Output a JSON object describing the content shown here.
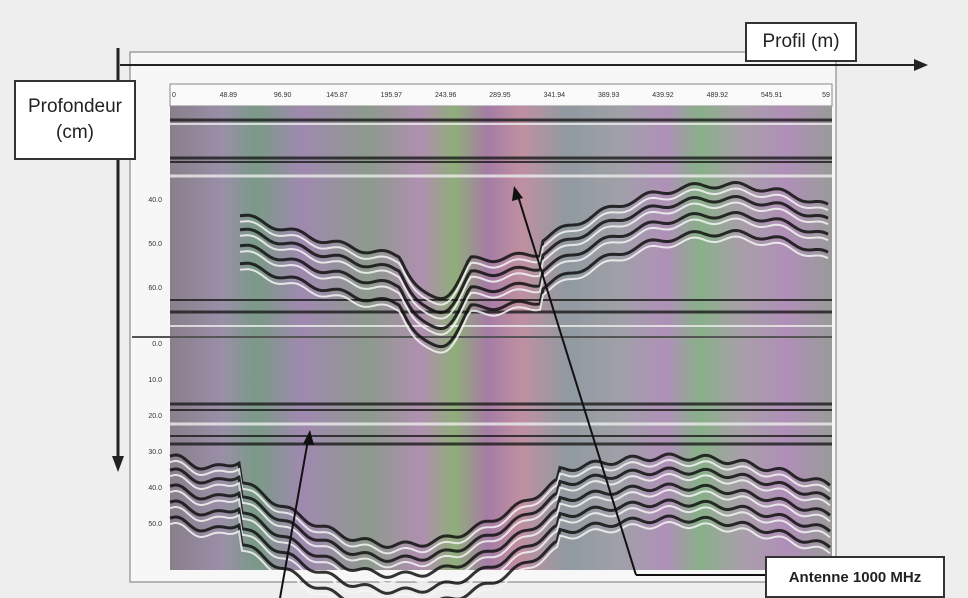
{
  "header": {
    "x_axis_label": "Profil (m)",
    "y_axis_label": [
      "Profondeur",
      "(cm)"
    ]
  },
  "callout": "Antenne 1000 MHz",
  "radargram": {
    "top_scale": [
      "0",
      "48.89",
      "96.90",
      "145.87",
      "195.97",
      "243.96",
      "289.95",
      "341.94",
      "389.93",
      "439.92",
      "489.92",
      "545.91",
      "59"
    ],
    "upper_depth_scale": [
      "40.0",
      "50.0",
      "60.0"
    ],
    "lower_depth_scale": [
      "0.0",
      "10.0",
      "20.0",
      "30.0",
      "40.0",
      "50.0"
    ]
  }
}
